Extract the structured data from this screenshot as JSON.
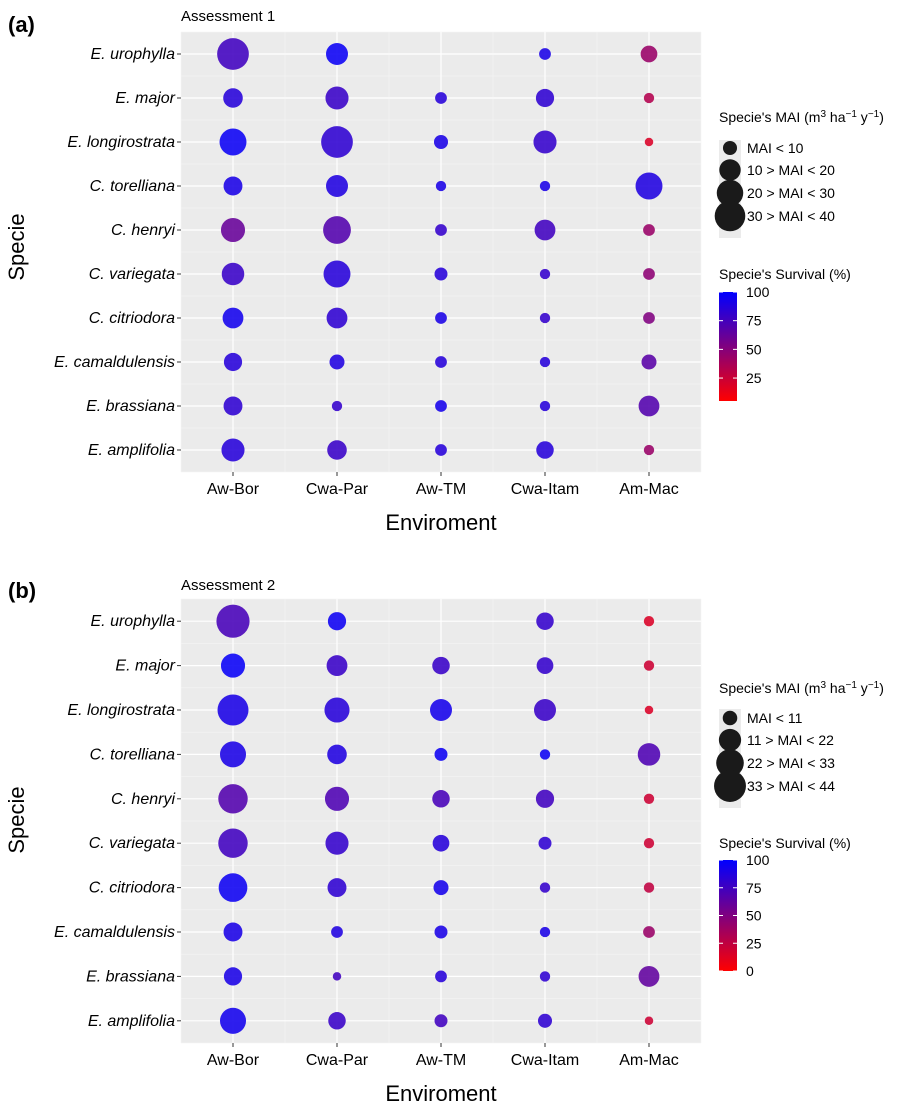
{
  "chart_data": [
    {
      "type": "scatter",
      "panel_label": "(a)",
      "title": "Assessment 1",
      "xlabel": "Enviroment",
      "ylabel": "Specie",
      "categories_x": [
        "Aw-Bor",
        "Cwa-Par",
        "Aw-TM",
        "Cwa-Itam",
        "Am-Mac"
      ],
      "categories_y": [
        "E. urophylla",
        "E. major",
        "E. longirostrata",
        "C. torelliana",
        "C. henryi",
        "C. variegata",
        "C. citriodora",
        "E. camaldulensis",
        "E. brassiana",
        "E. amplifolia"
      ],
      "grid": true,
      "legend_position": "right",
      "size_legend": {
        "title_prefix": "Specie's MAI (m",
        "title_unit_parts": [
          "3",
          " ha",
          "−1",
          " y",
          "−1",
          ")"
        ],
        "items": [
          "MAI < 10",
          "10 > MAI < 20",
          "20 > MAI < 30",
          "30 > MAI < 40"
        ],
        "mai_levels": [
          5,
          15,
          25,
          35
        ]
      },
      "color_legend": {
        "title": "Specie's Survival (%)",
        "ticks": [
          "100",
          "75",
          "50",
          "25"
        ],
        "tick_values": [
          100,
          75,
          50,
          25
        ],
        "range": [
          5,
          100
        ],
        "low_color": "#ff0000",
        "high_color": "#0000ff"
      },
      "points": [
        {
          "specie": "E. urophylla",
          "env": "Aw-Bor",
          "mai": 38,
          "survival": 75
        },
        {
          "specie": "E. urophylla",
          "env": "Cwa-Par",
          "mai": 16,
          "survival": 96
        },
        {
          "specie": "E. urophylla",
          "env": "Cwa-Itam",
          "mai": 3,
          "survival": 90
        },
        {
          "specie": "E. urophylla",
          "env": "Am-Mac",
          "mai": 8,
          "survival": 40
        },
        {
          "specie": "E. major",
          "env": "Aw-Bor",
          "mai": 12,
          "survival": 85
        },
        {
          "specie": "E. major",
          "env": "Cwa-Par",
          "mai": 18,
          "survival": 78
        },
        {
          "specie": "E. major",
          "env": "Aw-TM",
          "mai": 3,
          "survival": 85
        },
        {
          "specie": "E. major",
          "env": "Cwa-Itam",
          "mai": 10,
          "survival": 82
        },
        {
          "specie": "E. major",
          "env": "Am-Mac",
          "mai": 2,
          "survival": 30
        },
        {
          "specie": "E. longirostrata",
          "env": "Aw-Bor",
          "mai": 26,
          "survival": 96
        },
        {
          "specie": "E. longirostrata",
          "env": "Cwa-Par",
          "mai": 38,
          "survival": 82
        },
        {
          "specie": "E. longirostrata",
          "env": "Aw-TM",
          "mai": 5,
          "survival": 90
        },
        {
          "specie": "E. longirostrata",
          "env": "Cwa-Itam",
          "mai": 18,
          "survival": 80
        },
        {
          "specie": "E. longirostrata",
          "env": "Am-Mac",
          "mai": 1,
          "survival": 15
        },
        {
          "specie": "C. torelliana",
          "env": "Aw-Bor",
          "mai": 11,
          "survival": 90
        },
        {
          "specie": "C. torelliana",
          "env": "Cwa-Par",
          "mai": 16,
          "survival": 88
        },
        {
          "specie": "C. torelliana",
          "env": "Aw-TM",
          "mai": 2,
          "survival": 90
        },
        {
          "specie": "C. torelliana",
          "env": "Cwa-Itam",
          "mai": 2,
          "survival": 90
        },
        {
          "specie": "C. torelliana",
          "env": "Am-Mac",
          "mai": 26,
          "survival": 88
        },
        {
          "specie": "C. henryi",
          "env": "Aw-Bor",
          "mai": 20,
          "survival": 60
        },
        {
          "specie": "C. henryi",
          "env": "Cwa-Par",
          "mai": 28,
          "survival": 68
        },
        {
          "specie": "C. henryi",
          "env": "Aw-TM",
          "mai": 3,
          "survival": 80
        },
        {
          "specie": "C. henryi",
          "env": "Cwa-Itam",
          "mai": 14,
          "survival": 75
        },
        {
          "specie": "C. henryi",
          "env": "Am-Mac",
          "mai": 3,
          "survival": 40
        },
        {
          "specie": "C. variegata",
          "env": "Aw-Bor",
          "mai": 17,
          "survival": 78
        },
        {
          "specie": "C. variegata",
          "env": "Cwa-Par",
          "mai": 26,
          "survival": 85
        },
        {
          "specie": "C. variegata",
          "env": "Aw-TM",
          "mai": 4,
          "survival": 85
        },
        {
          "specie": "C. variegata",
          "env": "Cwa-Itam",
          "mai": 2,
          "survival": 80
        },
        {
          "specie": "C. variegata",
          "env": "Am-Mac",
          "mai": 3,
          "survival": 45
        },
        {
          "specie": "C. citriodora",
          "env": "Aw-Bor",
          "mai": 14,
          "survival": 93
        },
        {
          "specie": "C. citriodora",
          "env": "Cwa-Par",
          "mai": 14,
          "survival": 82
        },
        {
          "specie": "C. citriodora",
          "env": "Aw-TM",
          "mai": 3,
          "survival": 90
        },
        {
          "specie": "C. citriodora",
          "env": "Cwa-Itam",
          "mai": 2,
          "survival": 80
        },
        {
          "specie": "C. citriodora",
          "env": "Am-Mac",
          "mai": 3,
          "survival": 50
        },
        {
          "specie": "E. camaldulensis",
          "env": "Aw-Bor",
          "mai": 10,
          "survival": 85
        },
        {
          "specie": "E. camaldulensis",
          "env": "Cwa-Par",
          "mai": 6,
          "survival": 88
        },
        {
          "specie": "E. camaldulensis",
          "env": "Aw-TM",
          "mai": 3,
          "survival": 85
        },
        {
          "specie": "E. camaldulensis",
          "env": "Cwa-Itam",
          "mai": 2,
          "survival": 85
        },
        {
          "specie": "E. camaldulensis",
          "env": "Am-Mac",
          "mai": 6,
          "survival": 65
        },
        {
          "specie": "E. brassiana",
          "env": "Aw-Bor",
          "mai": 11,
          "survival": 82
        },
        {
          "specie": "E. brassiana",
          "env": "Cwa-Par",
          "mai": 2,
          "survival": 80
        },
        {
          "specie": "E. brassiana",
          "env": "Aw-TM",
          "mai": 3,
          "survival": 92
        },
        {
          "specie": "E. brassiana",
          "env": "Cwa-Itam",
          "mai": 2,
          "survival": 85
        },
        {
          "specie": "E. brassiana",
          "env": "Am-Mac",
          "mai": 14,
          "survival": 68
        },
        {
          "specie": "E. amplifolia",
          "env": "Aw-Bor",
          "mai": 18,
          "survival": 85
        },
        {
          "specie": "E. amplifolia",
          "env": "Cwa-Par",
          "mai": 12,
          "survival": 78
        },
        {
          "specie": "E. amplifolia",
          "env": "Aw-TM",
          "mai": 3,
          "survival": 85
        },
        {
          "specie": "E. amplifolia",
          "env": "Cwa-Itam",
          "mai": 9,
          "survival": 85
        },
        {
          "specie": "E. amplifolia",
          "env": "Am-Mac",
          "mai": 2,
          "survival": 40
        }
      ]
    },
    {
      "type": "scatter",
      "panel_label": "(b)",
      "title": "Assessment 2",
      "xlabel": "Enviroment",
      "ylabel": "Specie",
      "categories_x": [
        "Aw-Bor",
        "Cwa-Par",
        "Aw-TM",
        "Cwa-Itam",
        "Am-Mac"
      ],
      "categories_y": [
        "E. urophylla",
        "E. major",
        "E. longirostrata",
        "C. torelliana",
        "C. henryi",
        "C. variegata",
        "C. citriodora",
        "E. camaldulensis",
        "E. brassiana",
        "E. amplifolia"
      ],
      "grid": true,
      "legend_position": "right",
      "size_legend": {
        "title_prefix": "Specie's MAI (m",
        "title_unit_parts": [
          "3",
          " ha",
          "−1",
          " y",
          "−1",
          ")"
        ],
        "items": [
          "MAI < 11",
          "11 > MAI < 22",
          "22 > MAI < 33",
          "33 > MAI < 44"
        ],
        "mai_levels": [
          5.5,
          16.5,
          27.5,
          38.5
        ]
      },
      "color_legend": {
        "title": "Specie's Survival (%)",
        "ticks": [
          "100",
          "75",
          "50",
          "25",
          "0"
        ],
        "tick_values": [
          100,
          75,
          50,
          25,
          0
        ],
        "range": [
          0,
          100
        ],
        "low_color": "#ff0000",
        "high_color": "#0000ff"
      },
      "points": [
        {
          "specie": "E. urophylla",
          "env": "Aw-Bor",
          "mai": 42,
          "survival": 72
        },
        {
          "specie": "E. urophylla",
          "env": "Cwa-Par",
          "mai": 10,
          "survival": 95
        },
        {
          "specie": "E. urophylla",
          "env": "Cwa-Itam",
          "mai": 9,
          "survival": 80
        },
        {
          "specie": "E. urophylla",
          "env": "Am-Mac",
          "mai": 2,
          "survival": 15
        },
        {
          "specie": "E. major",
          "env": "Aw-Bor",
          "mai": 20,
          "survival": 97
        },
        {
          "specie": "E. major",
          "env": "Cwa-Par",
          "mai": 14,
          "survival": 78
        },
        {
          "specie": "E. major",
          "env": "Aw-TM",
          "mai": 9,
          "survival": 78
        },
        {
          "specie": "E. major",
          "env": "Cwa-Itam",
          "mai": 8,
          "survival": 80
        },
        {
          "specie": "E. major",
          "env": "Am-Mac",
          "mai": 2,
          "survival": 20
        },
        {
          "specie": "E. longirostrata",
          "env": "Aw-Bor",
          "mai": 36,
          "survival": 90
        },
        {
          "specie": "E. longirostrata",
          "env": "Cwa-Par",
          "mai": 22,
          "survival": 85
        },
        {
          "specie": "E. longirostrata",
          "env": "Aw-TM",
          "mai": 16,
          "survival": 92
        },
        {
          "specie": "E. longirostrata",
          "env": "Cwa-Itam",
          "mai": 16,
          "survival": 78
        },
        {
          "specie": "E. longirostrata",
          "env": "Am-Mac",
          "mai": 1,
          "survival": 15
        },
        {
          "specie": "C. torelliana",
          "env": "Aw-Bor",
          "mai": 24,
          "survival": 90
        },
        {
          "specie": "C. torelliana",
          "env": "Cwa-Par",
          "mai": 12,
          "survival": 88
        },
        {
          "specie": "C. torelliana",
          "env": "Aw-TM",
          "mai": 4,
          "survival": 95
        },
        {
          "specie": "C. torelliana",
          "env": "Cwa-Itam",
          "mai": 2,
          "survival": 95
        },
        {
          "specie": "C. torelliana",
          "env": "Am-Mac",
          "mai": 17,
          "survival": 70
        },
        {
          "specie": "C. henryi",
          "env": "Aw-Bor",
          "mai": 32,
          "survival": 68
        },
        {
          "specie": "C. henryi",
          "env": "Cwa-Par",
          "mai": 20,
          "survival": 70
        },
        {
          "specie": "C. henryi",
          "env": "Aw-TM",
          "mai": 9,
          "survival": 72
        },
        {
          "specie": "C. henryi",
          "env": "Cwa-Itam",
          "mai": 10,
          "survival": 75
        },
        {
          "specie": "C. henryi",
          "env": "Am-Mac",
          "mai": 2,
          "survival": 20
        },
        {
          "specie": "C. variegata",
          "env": "Aw-Bor",
          "mai": 32,
          "survival": 75
        },
        {
          "specie": "C. variegata",
          "env": "Cwa-Par",
          "mai": 18,
          "survival": 80
        },
        {
          "specie": "C. variegata",
          "env": "Aw-TM",
          "mai": 8,
          "survival": 85
        },
        {
          "specie": "C. variegata",
          "env": "Cwa-Itam",
          "mai": 4,
          "survival": 82
        },
        {
          "specie": "C. variegata",
          "env": "Am-Mac",
          "mai": 2,
          "survival": 20
        },
        {
          "specie": "C. citriodora",
          "env": "Aw-Bor",
          "mai": 30,
          "survival": 95
        },
        {
          "specie": "C. citriodora",
          "env": "Cwa-Par",
          "mai": 11,
          "survival": 82
        },
        {
          "specie": "C. citriodora",
          "env": "Aw-TM",
          "mai": 6,
          "survival": 92
        },
        {
          "specie": "C. citriodora",
          "env": "Cwa-Itam",
          "mai": 2,
          "survival": 80
        },
        {
          "specie": "C. citriodora",
          "env": "Am-Mac",
          "mai": 2,
          "survival": 25
        },
        {
          "specie": "E. camaldulensis",
          "env": "Aw-Bor",
          "mai": 11,
          "survival": 90
        },
        {
          "specie": "E. camaldulensis",
          "env": "Cwa-Par",
          "mai": 3,
          "survival": 88
        },
        {
          "specie": "E. camaldulensis",
          "env": "Aw-TM",
          "mai": 4,
          "survival": 90
        },
        {
          "specie": "E. camaldulensis",
          "env": "Cwa-Itam",
          "mai": 2,
          "survival": 90
        },
        {
          "specie": "E. camaldulensis",
          "env": "Am-Mac",
          "mai": 3,
          "survival": 40
        },
        {
          "specie": "E. brassiana",
          "env": "Aw-Bor",
          "mai": 10,
          "survival": 90
        },
        {
          "specie": "E. brassiana",
          "env": "Cwa-Par",
          "mai": 1,
          "survival": 75
        },
        {
          "specie": "E. brassiana",
          "env": "Aw-TM",
          "mai": 3,
          "survival": 85
        },
        {
          "specie": "E. brassiana",
          "env": "Cwa-Itam",
          "mai": 2,
          "survival": 82
        },
        {
          "specie": "E. brassiana",
          "env": "Am-Mac",
          "mai": 14,
          "survival": 62
        },
        {
          "specie": "E. amplifolia",
          "env": "Aw-Bor",
          "mai": 24,
          "survival": 93
        },
        {
          "specie": "E. amplifolia",
          "env": "Cwa-Par",
          "mai": 9,
          "survival": 78
        },
        {
          "specie": "E. amplifolia",
          "env": "Aw-TM",
          "mai": 4,
          "survival": 75
        },
        {
          "specie": "E. amplifolia",
          "env": "Cwa-Itam",
          "mai": 5,
          "survival": 82
        },
        {
          "specie": "E. amplifolia",
          "env": "Am-Mac",
          "mai": 1,
          "survival": 20
        }
      ]
    }
  ]
}
